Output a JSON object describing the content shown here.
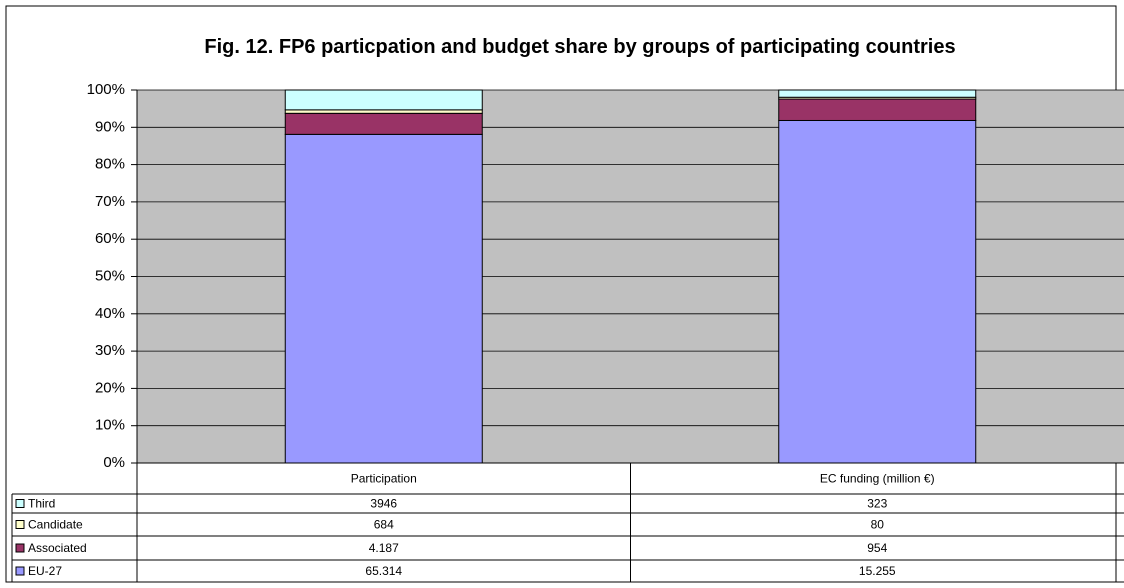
{
  "chart_data": {
    "type": "bar",
    "stacking": "percent",
    "title": "Fig. 12. FP6 particpation and budget share by groups of participating countries",
    "categories": [
      "Participation",
      "EC funding (million €)"
    ],
    "series": [
      {
        "name": "Third",
        "color": "#ccffff",
        "values": [
          3946,
          323
        ]
      },
      {
        "name": "Candidate",
        "color": "#ffffcc",
        "values": [
          684,
          80
        ]
      },
      {
        "name": "Associated",
        "color": "#993366",
        "values": [
          4187,
          954
        ],
        "value_labels": [
          "4.187",
          "954"
        ]
      },
      {
        "name": "EU-27",
        "color": "#9999ff",
        "values": [
          65314,
          15255
        ],
        "value_labels": [
          "65.314",
          "15.255"
        ]
      }
    ],
    "ylim": [
      0,
      100
    ],
    "yticks": [
      {
        "value": 0,
        "label": "0%"
      },
      {
        "value": 10,
        "label": "10%"
      },
      {
        "value": 20,
        "label": "20%"
      },
      {
        "value": 30,
        "label": "30%"
      },
      {
        "value": 40,
        "label": "40%"
      },
      {
        "value": 50,
        "label": "50%"
      },
      {
        "value": 60,
        "label": "60%"
      },
      {
        "value": 70,
        "label": "70%"
      },
      {
        "value": 80,
        "label": "80%"
      },
      {
        "value": 90,
        "label": "90%"
      },
      {
        "value": 100,
        "label": "100%"
      }
    ],
    "grid": true,
    "plot_background": "#c0c0c0"
  }
}
